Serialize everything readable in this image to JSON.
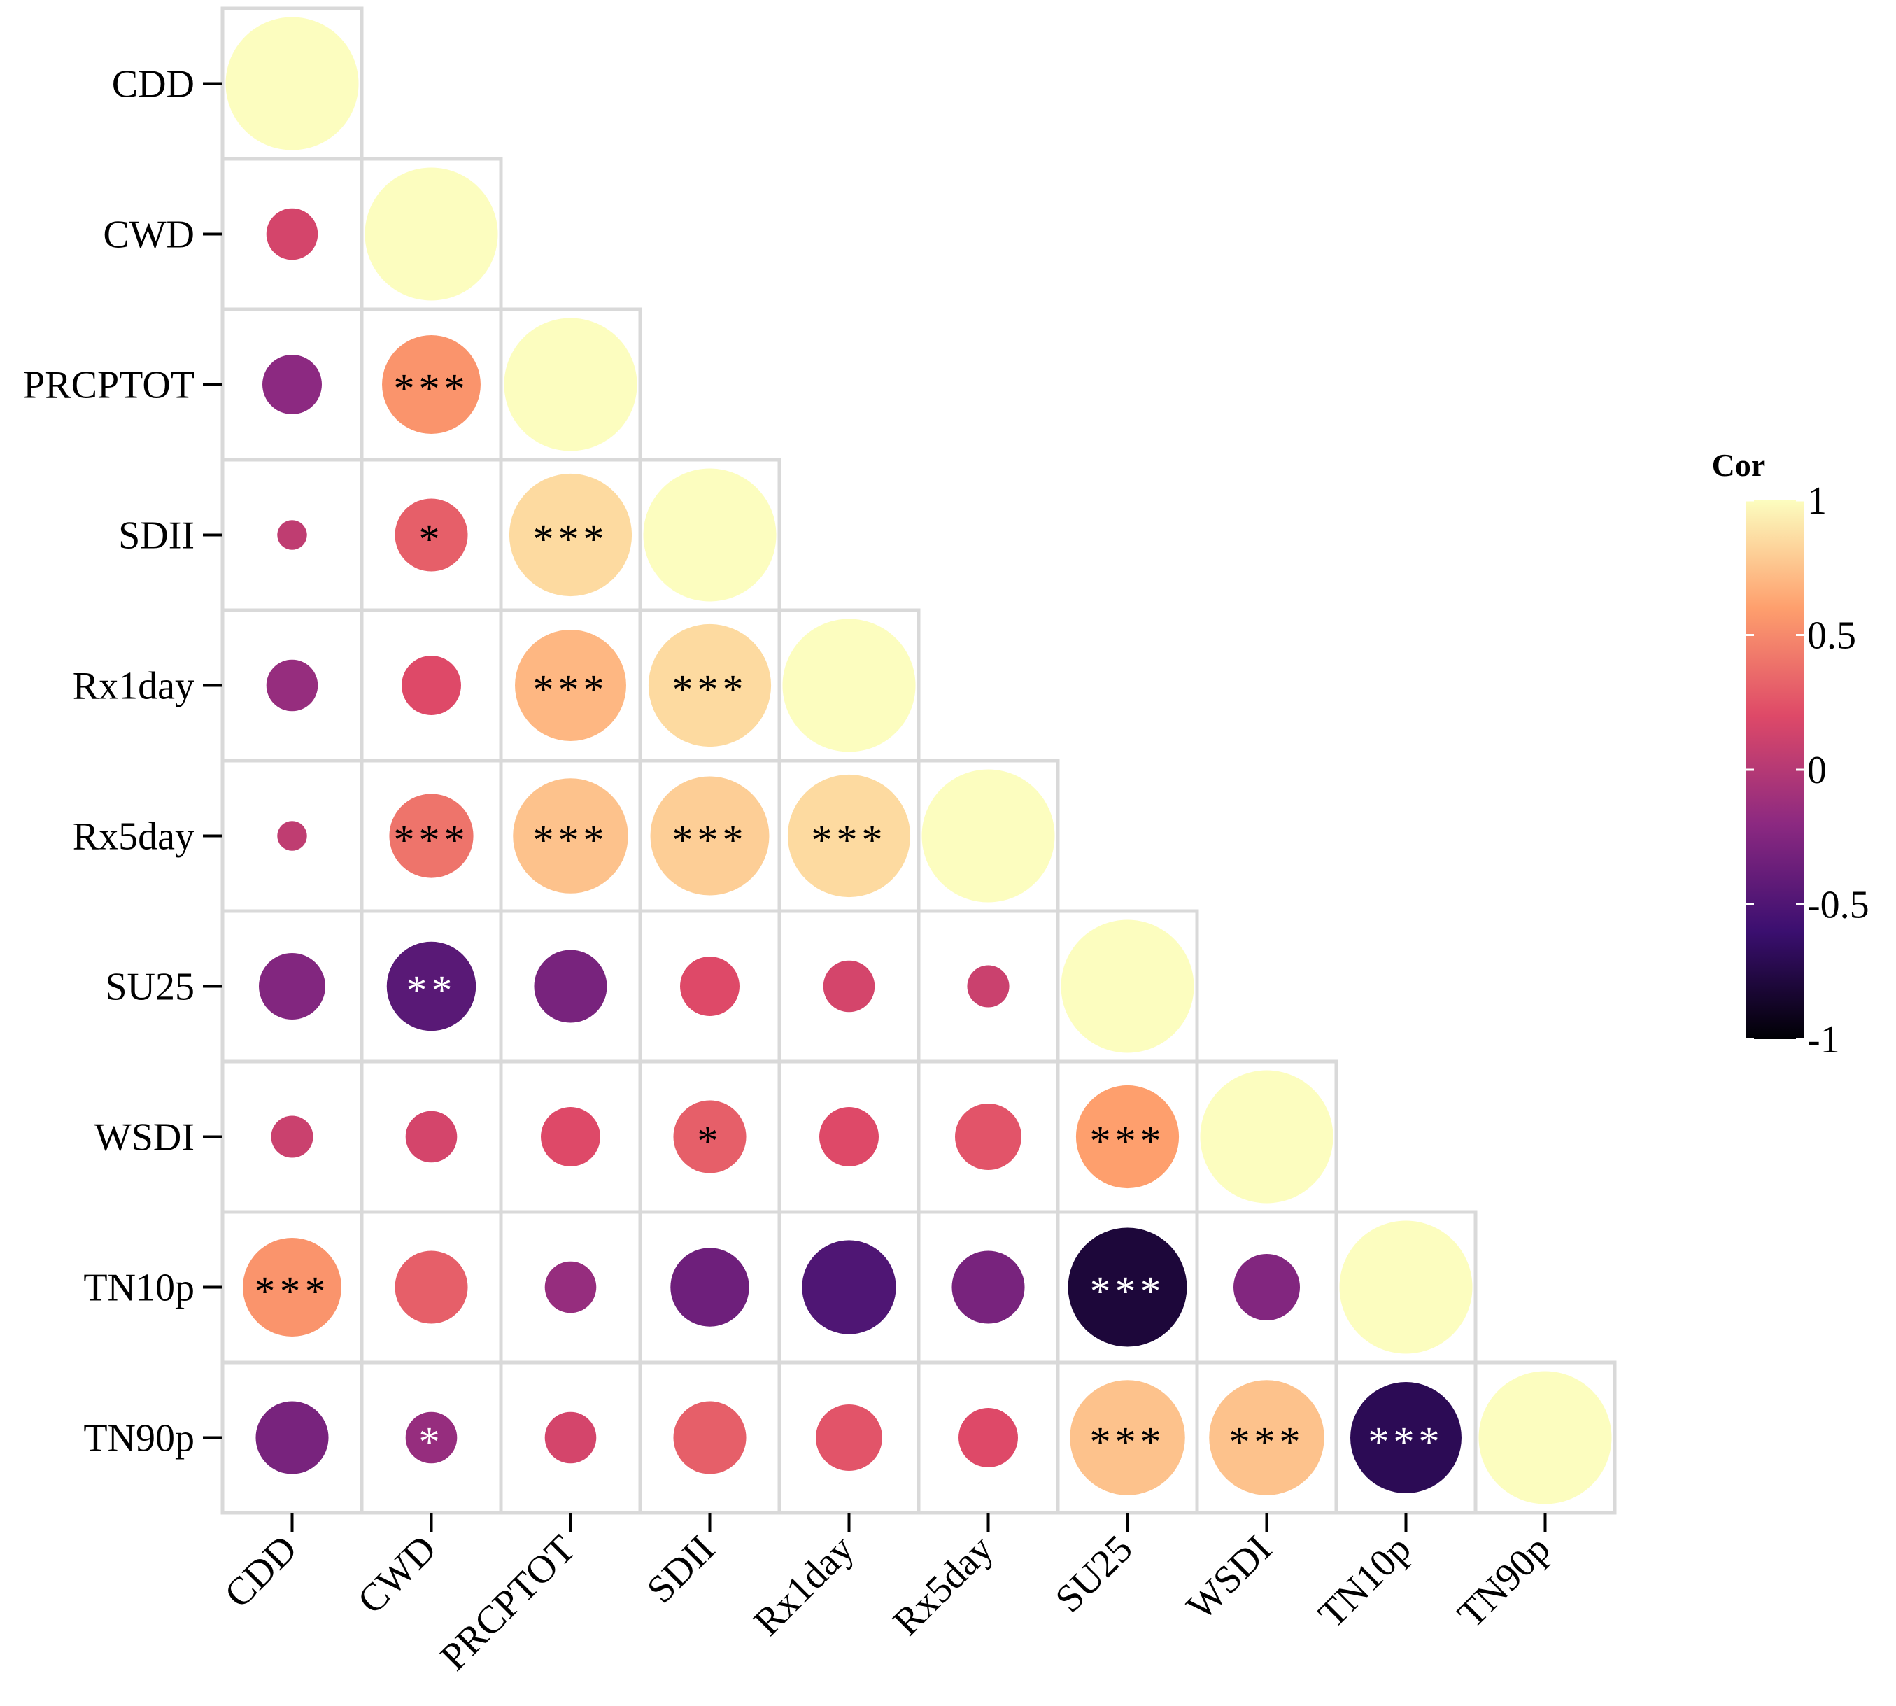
{
  "chart_data": {
    "type": "correlogram",
    "title": "",
    "variables": [
      "CDD",
      "CWD",
      "PRCPTOT",
      "SDII",
      "Rx1day",
      "Rx5day",
      "SU25",
      "WSDI",
      "TN10p",
      "TN90p"
    ],
    "matrix": [
      [
        1
      ],
      [
        0.15,
        1
      ],
      [
        -0.2,
        0.55,
        1
      ],
      [
        0.05,
        0.3,
        0.85,
        1
      ],
      [
        -0.15,
        0.2,
        0.7,
        0.85,
        1
      ],
      [
        0.05,
        0.4,
        0.75,
        0.8,
        0.85,
        1
      ],
      [
        -0.25,
        -0.45,
        -0.3,
        0.2,
        0.15,
        0.1,
        1
      ],
      [
        0.1,
        0.15,
        0.2,
        0.3,
        0.2,
        0.25,
        0.6,
        1
      ],
      [
        0.55,
        0.3,
        -0.15,
        -0.35,
        -0.5,
        -0.3,
        -0.8,
        -0.25,
        1
      ],
      [
        -0.3,
        -0.15,
        0.15,
        0.3,
        0.25,
        0.2,
        0.75,
        0.75,
        -0.7,
        1
      ]
    ],
    "significance": [
      [
        ""
      ],
      [
        "",
        ""
      ],
      [
        "",
        "***",
        ""
      ],
      [
        "",
        "*",
        "***",
        ""
      ],
      [
        "",
        "",
        "***",
        "***",
        ""
      ],
      [
        "",
        "***",
        "***",
        "***",
        "***",
        ""
      ],
      [
        "",
        "**",
        "",
        "",
        "",
        "",
        ""
      ],
      [
        "",
        "",
        "",
        "*",
        "",
        "",
        "***",
        ""
      ],
      [
        "***",
        "",
        "",
        "",
        "",
        "",
        "***",
        "",
        ""
      ],
      [
        "",
        "*",
        "",
        "",
        "",
        "",
        "***",
        "***",
        "***",
        ""
      ]
    ],
    "legend": {
      "title": "Cor",
      "ticks": [
        "1",
        "0.5",
        "0",
        "-0.5",
        "-1"
      ],
      "tick_values": [
        1,
        0.5,
        0,
        -0.5,
        -1
      ],
      "range": [
        -1,
        1
      ],
      "colors": [
        "#000004",
        "#3b0f70",
        "#8c2981",
        "#de4968",
        "#fe9f6d",
        "#fcfdbf"
      ],
      "placement": "right"
    },
    "grid": true
  }
}
